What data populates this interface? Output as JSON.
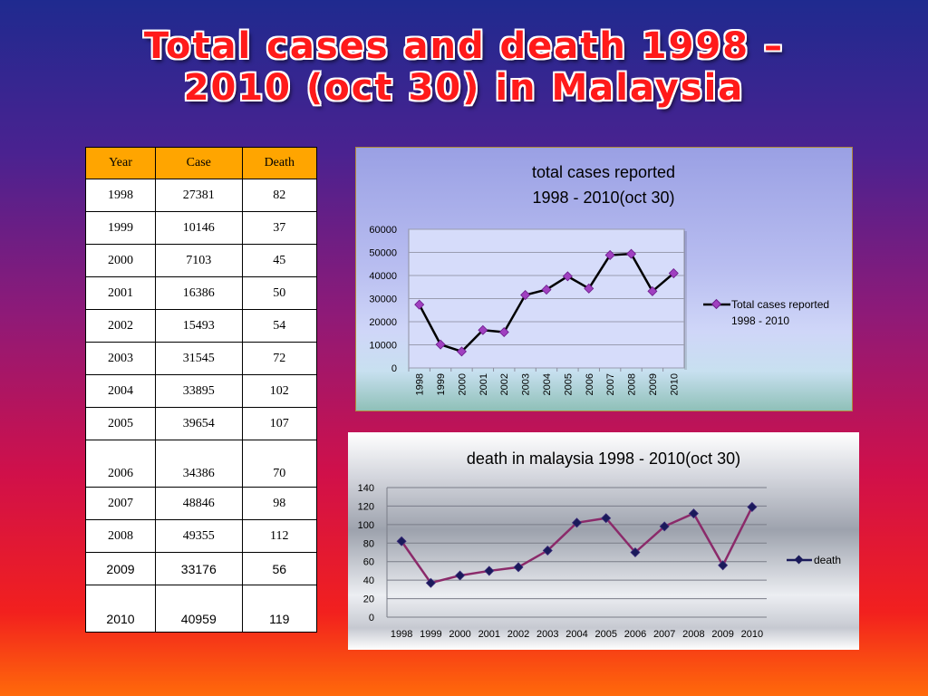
{
  "title": {
    "line1": "Total cases and death 1998 –",
    "line2": "2010 (oct 30) in Malaysia"
  },
  "table": {
    "headers": [
      "Year",
      "Case",
      "Death"
    ],
    "rows": [
      [
        "1998",
        "27381",
        "82"
      ],
      [
        "1999",
        "10146",
        "37"
      ],
      [
        "2000",
        "7103",
        "45"
      ],
      [
        "2001",
        "16386",
        "50"
      ],
      [
        "2002",
        "15493",
        "54"
      ],
      [
        "2003",
        "31545",
        "72"
      ],
      [
        "2004",
        "33895",
        "102"
      ],
      [
        "2005",
        "39654",
        "107"
      ],
      [
        "2006",
        "34386",
        "70"
      ],
      [
        "2007",
        "48846",
        "98"
      ],
      [
        "2008",
        "49355",
        "112"
      ],
      [
        "2009",
        "33176",
        "56"
      ],
      [
        "2010",
        "40959",
        "119"
      ]
    ]
  },
  "chart_data": [
    {
      "type": "line",
      "title_line1": "total cases reported",
      "title_line2": "1998 - 2010(oct 30)",
      "categories": [
        "1998",
        "1999",
        "2000",
        "2001",
        "2002",
        "2003",
        "2004",
        "2005",
        "2006",
        "2007",
        "2008",
        "2009",
        "2010"
      ],
      "series": [
        {
          "name_line1": "Total cases reported",
          "name_line2": "1998 - 2010",
          "values": [
            27381,
            10146,
            7103,
            16386,
            15493,
            31545,
            33895,
            39654,
            34386,
            48846,
            49355,
            33176,
            40959
          ],
          "line_color": "#000000",
          "marker_color": "#a040c0"
        }
      ],
      "ylim": [
        0,
        60000
      ],
      "yticks": [
        0,
        10000,
        20000,
        30000,
        40000,
        50000,
        60000
      ],
      "grid": true,
      "legend": "right"
    },
    {
      "type": "line",
      "title": "death in malaysia 1998 - 2010(oct 30)",
      "categories": [
        "1998",
        "1999",
        "2000",
        "2001",
        "2002",
        "2003",
        "2004",
        "2005",
        "2006",
        "2007",
        "2008",
        "2009",
        "2010"
      ],
      "series": [
        {
          "name": "death",
          "values": [
            82,
            37,
            45,
            50,
            54,
            72,
            102,
            107,
            70,
            98,
            112,
            56,
            119
          ],
          "line_color": "#8b2a6a",
          "marker_color": "#1a1a5a"
        }
      ],
      "ylim": [
        0,
        140
      ],
      "yticks": [
        0,
        20,
        40,
        60,
        80,
        100,
        120,
        140
      ],
      "grid": true,
      "legend": "right"
    }
  ]
}
